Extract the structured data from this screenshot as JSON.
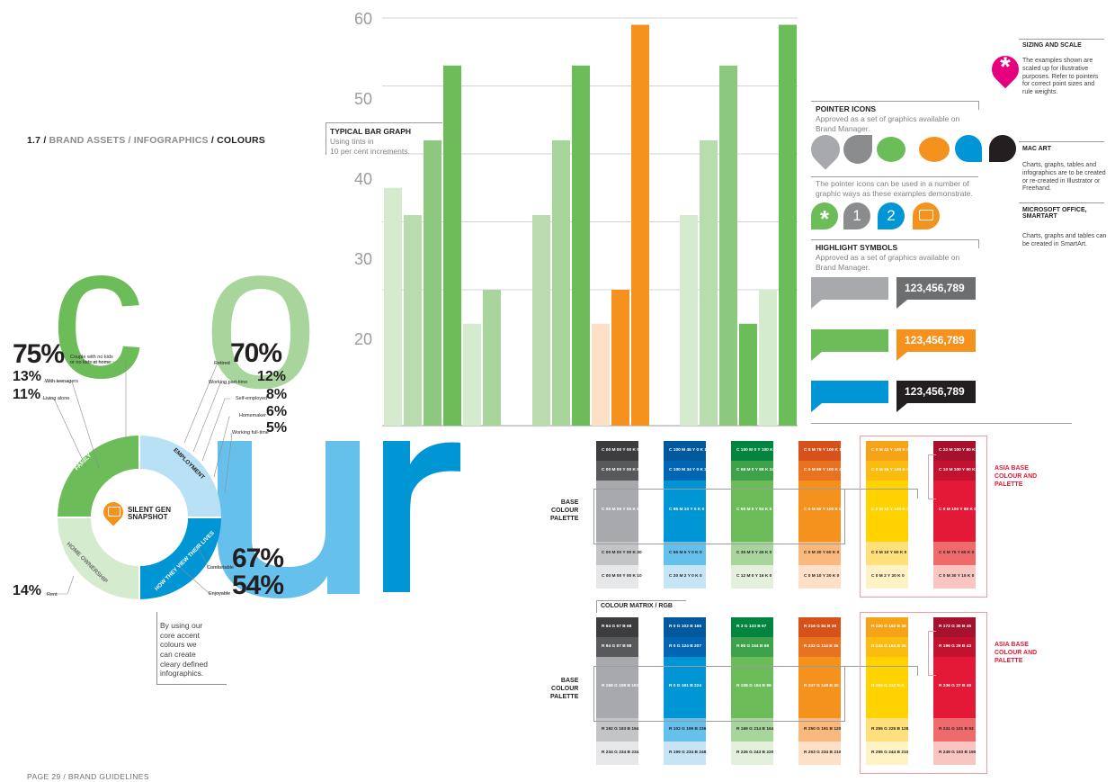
{
  "header": {
    "section": "1.7",
    "path_dim": "BRAND ASSETS / INFOGRAPHICS",
    "path_last": "COLOURS",
    "sep": "/"
  },
  "footer": "PAGE 29 / BRAND GUIDELINES",
  "big_word": {
    "c": "c",
    "o1": "o",
    "o2": "o",
    "u": "u",
    "r": "r"
  },
  "donut": {
    "center_title": "SILENT GEN\nSNAPSHOT",
    "segments": [
      "FAMILY",
      "EMPLOYMENT",
      "HOW THEY VIEW THEIR LIVES",
      "HOME OWNERSHIP"
    ],
    "stats_left": [
      {
        "value": "75%",
        "label": "Couple with no kids\nor no kids at home"
      },
      {
        "value": "13%",
        "label": "With teenagers"
      },
      {
        "value": "11%",
        "label": "Living alone"
      },
      {
        "value": "14%",
        "label": "Rent"
      }
    ],
    "stats_right": [
      {
        "value": "70%",
        "label": "Retired"
      },
      {
        "value": "12%",
        "label": "Working part-time"
      },
      {
        "value": "8%",
        "label": "Self-employed"
      },
      {
        "value": "6%",
        "label": "Homemaker"
      },
      {
        "value": "5%",
        "label": "Working full-time"
      },
      {
        "value": "67%",
        "label": "Comfortable"
      },
      {
        "value": "54%",
        "label": "Enjoyable"
      }
    ],
    "caption": "By using our\ncore accent\ncolours we\ncan create\ncleary defined\ninfographics."
  },
  "bar_graph": {
    "title": "TYPICAL BAR GRAPH",
    "subtitle": "Using tints in\n10 per cent increments."
  },
  "chart_data": {
    "type": "bar",
    "y_ticks": [
      "60",
      "50",
      "40",
      "30",
      "20"
    ],
    "ylim": [
      0,
      60
    ],
    "grid": true,
    "groups": [
      {
        "color": "green",
        "values": [
          35,
          31,
          42,
          53,
          15,
          20
        ]
      },
      {
        "color": "mixed",
        "values": [
          31,
          42,
          53,
          15,
          20,
          59
        ]
      },
      {
        "color": "green",
        "values": [
          31,
          42,
          53,
          15,
          20,
          59
        ]
      }
    ]
  },
  "pointer_icons": {
    "title": "POINTER ICONS",
    "desc": "Approved as a set of graphics available on\nBrand Manager.",
    "desc2": "The pointer icons can be used in a number of\ngraphic ways as these examples demonstrate.",
    "num1": "1",
    "num2": "2"
  },
  "highlight": {
    "title": "HIGHLIGHT SYMBOLS",
    "desc": "Approved as a set of graphics available on\nBrand Manager.",
    "number": "123,456,789"
  },
  "right_col": {
    "sizing_title": "SIZING AND SCALE",
    "sizing_body": "The examples shown are\nscaled up for illustrative\npurposes. Refer to pointers\nfor correct point sizes and\nrule weights.",
    "mac_title": "MAC ART",
    "mac_body": "Charts, graphs, tables and\ninfographics are to be created\nor re-created in Illustrator or\nFreehand.",
    "ms_title": "MICROSOFT OFFICE,\nSMARTART",
    "ms_body": "Charts, graphs and tables can\nbe created in SmartArt."
  },
  "palette": {
    "base_label": "BASE\nCOLOUR\nPALETTE",
    "asia_label": "ASIA BASE\nCOLOUR AND\nPALETTE",
    "rgb_label": "COLOUR MATRIX / RGB",
    "colors": {
      "grey": [
        "#3d3d3f",
        "#58595b",
        "#a7a9ac",
        "#c3c4c6",
        "#e6e7e8"
      ],
      "blue": [
        "#00599c",
        "#0066b3",
        "#0096d6",
        "#66c0ec",
        "#c7e4f5"
      ],
      "green": [
        "#03843f",
        "#3ea24a",
        "#6cbd5a",
        "#a7d59c",
        "#e2f0dc"
      ],
      "orange": [
        "#d7521b",
        "#e8721f",
        "#f5921e",
        "#fab97c",
        "#fde0c5"
      ],
      "yellow": [
        "#f6a318",
        "#fcbc0f",
        "#ffd200",
        "#ffe07a",
        "#fff2c4"
      ],
      "red": [
        "#a6122d",
        "#c31130",
        "#e31937",
        "#ef6b6b",
        "#f9c5c0"
      ]
    },
    "cmyk": {
      "grey": [
        "C 00 M 00 Y 00 K 90",
        "C 00 M 00 Y 00 K 80",
        "C 00 M 00 Y 00 K 50",
        "C 00 M 00 Y 00 K 30",
        "C 00 M 00 Y 00 K 10"
      ],
      "blue": [
        "C 100 M 45 Y 0 K 18",
        "C 100 M 34 Y 0 K 2",
        "C 95 M 10 Y 0 K 0",
        "C 56 M 6 Y 0 K 0",
        "C 20 M 2 Y 0 K 0"
      ],
      "green": [
        "C 100 M 0 Y 100 K 27",
        "C 68 M 0 Y 88 K 24",
        "C 65 M 0 Y 84 K 0",
        "C 35 M 0 Y 45 K 0",
        "C 12 M 0 Y 16 K 0"
      ],
      "orange": [
        "C 0 M 75 Y 100 K 11",
        "C 0 M 69 Y 100 K 4",
        "C 0 M 50 Y 100 K 0",
        "C 0 M 30 Y 60 K 0",
        "C 0 M 10 Y 20 K 0"
      ],
      "yellow": [
        "C 0 M 42 Y 100 K 0",
        "C 0 M 26 Y 100 K 0",
        "C 0 M 10 Y 100 K 0",
        "C 0 M 10 Y 60 K 0",
        "C 0 M 2 Y 20 K 0"
      ],
      "red": [
        "C 22 M 100 Y 80 K 15",
        "C 10 M 100 Y 90 K 0",
        "C 0 M 100 Y 80 K 0",
        "C 0 M 75 Y 60 K 0",
        "C 0 M 30 Y 15 K 0"
      ]
    },
    "rgb": {
      "grey": [
        "R 64 G 67 B 68",
        "R 94 G 97 B 98",
        "R 158 G 159 B 161",
        "R 192 G 193 B 194",
        "R 234 G 234 B 234"
      ],
      "blue": [
        "R 0 G 102 B 165",
        "R 0 G 124 B 207",
        "R 0 G 161 B 224",
        "R 102 G 199 B 236",
        "R 199 G 234 B 248"
      ],
      "green": [
        "R 3 G 133 B 67",
        "R 86 G 154 B 68",
        "R 108 G 194 B 99",
        "R 169 G 214 B 164",
        "R 226 G 243 B 220"
      ],
      "orange": [
        "R 216 G 84 B 39",
        "R 232 G 114 B 36",
        "R 247 G 148 B 30",
        "R 250 G 191 B 120",
        "R 253 G 234 B 210"
      ],
      "yellow": [
        "R 220 G 182 B 35",
        "R 234 G 194 B 35",
        "R 250 G 212 B 0",
        "R 255 G 225 B 128",
        "R 255 G 244 B 210"
      ],
      "red": [
        "R 172 G 30 B 45",
        "R 196 G 29 B 43",
        "R 236 G 27 B 48",
        "R 241 G 101 B 93",
        "R 249 G 193 B 190"
      ]
    }
  }
}
